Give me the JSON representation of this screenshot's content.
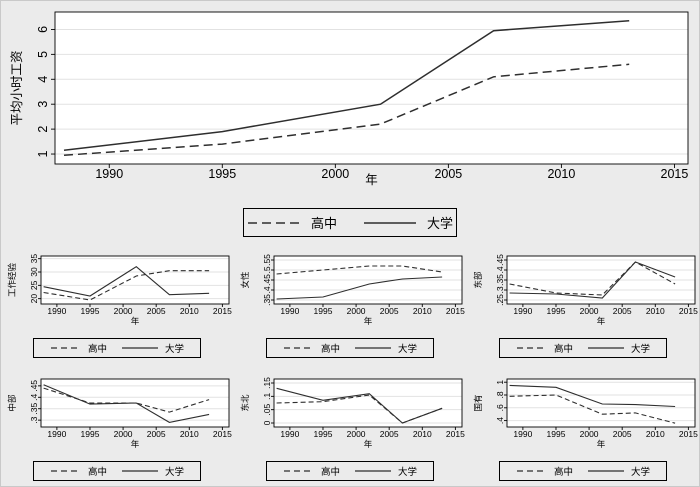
{
  "legend": {
    "items": [
      {
        "label": "高中",
        "style": "dashed"
      },
      {
        "label": "大学",
        "style": "solid"
      }
    ]
  },
  "colors": {
    "figure_bg": "#ebebeb",
    "plot_bg": "#ffffff",
    "grid": "#e2e2e2",
    "axis": "#000000",
    "line": "#2e2e2e"
  },
  "chart_data": [
    {
      "name": "average-hourly-wage",
      "type": "line",
      "title": "",
      "xlabel": "年",
      "ylabel": "平均小时工资",
      "xlim": [
        1987.6,
        2015.6
      ],
      "xticks": [
        1990,
        1995,
        2000,
        2005,
        2010,
        2015
      ],
      "ylim": [
        0.6,
        6.7
      ],
      "yticks": [
        {
          "v": 1,
          "label": "1"
        },
        {
          "v": 2,
          "label": "2"
        },
        {
          "v": 3,
          "label": "3"
        },
        {
          "v": 4,
          "label": "4"
        },
        {
          "v": 5,
          "label": "5"
        },
        {
          "v": 6,
          "label": "6"
        }
      ],
      "grid": true,
      "series": [
        {
          "name": "高中",
          "dash": true,
          "x": [
            1988,
            1995,
            2002,
            2007,
            2013
          ],
          "y": [
            0.95,
            1.4,
            2.2,
            4.1,
            4.6
          ]
        },
        {
          "name": "大学",
          "dash": false,
          "x": [
            1988,
            1995,
            2002,
            2007,
            2013
          ],
          "y": [
            1.15,
            1.9,
            3.0,
            5.95,
            6.35
          ]
        }
      ]
    },
    {
      "name": "work-experience",
      "type": "line",
      "xlabel": "年",
      "ylabel": "工作经验",
      "xlim": [
        1987.6,
        2016.0
      ],
      "xticks": [
        1990,
        1995,
        2000,
        2005,
        2010,
        2015
      ],
      "ylim": [
        18,
        36
      ],
      "yticks": [
        {
          "v": 20,
          "label": "20"
        },
        {
          "v": 25,
          "label": "25"
        },
        {
          "v": 30,
          "label": "30"
        },
        {
          "v": 35,
          "label": "35"
        }
      ],
      "grid": true,
      "series": [
        {
          "name": "高中",
          "dash": true,
          "x": [
            1988,
            1995,
            2002,
            2007,
            2013
          ],
          "y": [
            22.3,
            19.5,
            28.5,
            30.5,
            30.5
          ]
        },
        {
          "name": "大学",
          "dash": false,
          "x": [
            1988,
            1995,
            2002,
            2007,
            2013
          ],
          "y": [
            24.5,
            21.0,
            32.0,
            21.5,
            22.0
          ]
        }
      ]
    },
    {
      "name": "female-share",
      "type": "line",
      "xlabel": "年",
      "ylabel": "女性",
      "xlim": [
        1987.6,
        2016.0
      ],
      "xticks": [
        1990,
        1995,
        2000,
        2005,
        2010,
        2015
      ],
      "ylim": [
        0.33,
        0.57
      ],
      "yticks": [
        {
          "v": 0.35,
          "label": ".35"
        },
        {
          "v": 0.4,
          "label": ".4"
        },
        {
          "v": 0.45,
          "label": ".45"
        },
        {
          "v": 0.5,
          "label": ".5"
        },
        {
          "v": 0.55,
          "label": ".55"
        }
      ],
      "grid": true,
      "series": [
        {
          "name": "高中",
          "dash": true,
          "x": [
            1988,
            1995,
            2002,
            2007,
            2013
          ],
          "y": [
            0.48,
            0.5,
            0.52,
            0.52,
            0.49
          ]
        },
        {
          "name": "大学",
          "dash": false,
          "x": [
            1988,
            1995,
            2002,
            2007,
            2013
          ],
          "y": [
            0.355,
            0.365,
            0.43,
            0.455,
            0.465
          ]
        }
      ]
    },
    {
      "name": "east-region",
      "type": "line",
      "xlabel": "年",
      "ylabel": "东部",
      "xlim": [
        1987.6,
        2016.0
      ],
      "xticks": [
        1990,
        1995,
        2000,
        2005,
        2010,
        2015
      ],
      "ylim": [
        0.23,
        0.47
      ],
      "yticks": [
        {
          "v": 0.25,
          "label": ".25"
        },
        {
          "v": 0.3,
          "label": ".3"
        },
        {
          "v": 0.35,
          "label": ".35"
        },
        {
          "v": 0.4,
          "label": ".4"
        },
        {
          "v": 0.45,
          "label": ".45"
        }
      ],
      "grid": true,
      "series": [
        {
          "name": "高中",
          "dash": true,
          "x": [
            1988,
            1995,
            2002,
            2007,
            2013
          ],
          "y": [
            0.33,
            0.285,
            0.275,
            0.44,
            0.33
          ]
        },
        {
          "name": "大学",
          "dash": false,
          "x": [
            1988,
            1995,
            2002,
            2007,
            2013
          ],
          "y": [
            0.285,
            0.28,
            0.26,
            0.44,
            0.365
          ]
        }
      ]
    },
    {
      "name": "central-region",
      "type": "line",
      "xlabel": "年",
      "ylabel": "中部",
      "xlim": [
        1987.6,
        2016.0
      ],
      "xticks": [
        1990,
        1995,
        2000,
        2005,
        2010,
        2015
      ],
      "ylim": [
        0.27,
        0.48
      ],
      "yticks": [
        {
          "v": 0.3,
          "label": ".3"
        },
        {
          "v": 0.35,
          "label": ".35"
        },
        {
          "v": 0.4,
          "label": ".4"
        },
        {
          "v": 0.45,
          "label": ".45"
        }
      ],
      "grid": true,
      "series": [
        {
          "name": "高中",
          "dash": true,
          "x": [
            1988,
            1995,
            2002,
            2007,
            2013
          ],
          "y": [
            0.44,
            0.375,
            0.375,
            0.335,
            0.39
          ]
        },
        {
          "name": "大学",
          "dash": false,
          "x": [
            1988,
            1995,
            2002,
            2007,
            2013
          ],
          "y": [
            0.455,
            0.37,
            0.375,
            0.29,
            0.325
          ]
        }
      ]
    },
    {
      "name": "northeast-region",
      "type": "line",
      "xlabel": "年",
      "ylabel": "东北",
      "xlim": [
        1987.6,
        2016.0
      ],
      "xticks": [
        1990,
        1995,
        2000,
        2005,
        2010,
        2015
      ],
      "ylim": [
        -0.015,
        0.165
      ],
      "yticks": [
        {
          "v": 0,
          "label": "0"
        },
        {
          "v": 0.05,
          "label": ".05"
        },
        {
          "v": 0.1,
          "label": ".1"
        },
        {
          "v": 0.15,
          "label": ".15"
        }
      ],
      "grid": true,
      "series": [
        {
          "name": "高中",
          "dash": true,
          "x": [
            1988,
            1995,
            2002,
            2007,
            2013
          ],
          "y": [
            0.075,
            0.08,
            0.105,
            0.0,
            0.055
          ]
        },
        {
          "name": "大学",
          "dash": false,
          "x": [
            1988,
            1995,
            2002,
            2007,
            2013
          ],
          "y": [
            0.13,
            0.085,
            0.11,
            0.0,
            0.055
          ]
        }
      ]
    },
    {
      "name": "state-owned",
      "type": "line",
      "xlabel": "年",
      "ylabel": "国有",
      "xlim": [
        1987.6,
        2016.0
      ],
      "xticks": [
        1990,
        1995,
        2000,
        2005,
        2010,
        2015
      ],
      "ylim": [
        0.3,
        1.05
      ],
      "yticks": [
        {
          "v": 0.4,
          "label": ".4"
        },
        {
          "v": 0.6,
          "label": ".6"
        },
        {
          "v": 0.8,
          "label": ".8"
        },
        {
          "v": 1,
          "label": "1"
        }
      ],
      "grid": true,
      "series": [
        {
          "name": "高中",
          "dash": true,
          "x": [
            1988,
            1995,
            2002,
            2007,
            2013
          ],
          "y": [
            0.78,
            0.8,
            0.5,
            0.52,
            0.36
          ]
        },
        {
          "name": "大学",
          "dash": false,
          "x": [
            1988,
            1995,
            2002,
            2007,
            2013
          ],
          "y": [
            0.95,
            0.92,
            0.66,
            0.65,
            0.62
          ]
        }
      ]
    }
  ]
}
